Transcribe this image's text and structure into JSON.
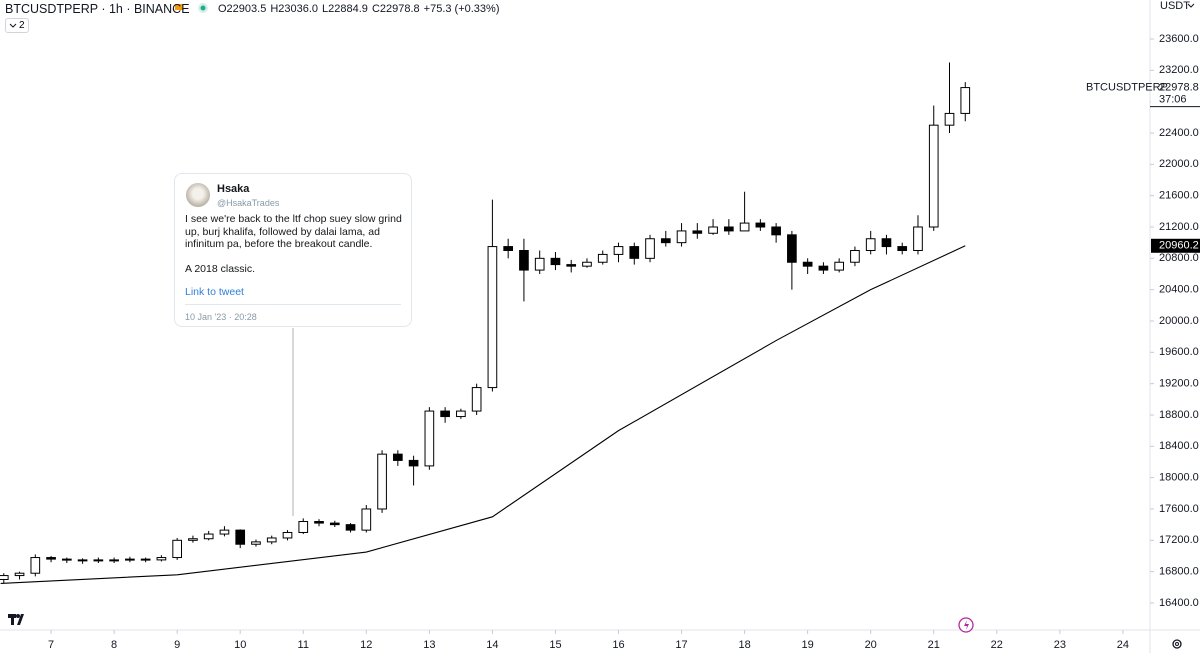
{
  "chart_data": {
    "type": "candlestick",
    "title": "BTCUSDTPERP · 1h · BINANCE",
    "ohlc": [
      "O22903.5",
      "H23036.0",
      "L22884.9",
      "C22978.8"
    ],
    "change": "+75.3 (+0.33%)",
    "indicators_count": 2,
    "currency": "USDT",
    "symbol_label": "BTCUSDTPERP",
    "last_price": 22978.8,
    "countdown": "37:06",
    "ma_last": 20960.2,
    "up_color": "#ffffff",
    "down_color": "#000000",
    "wick_color": "#000000",
    "x": [
      6.25,
      6.5,
      6.75,
      7,
      7.25,
      7.5,
      7.75,
      8,
      8.25,
      8.5,
      8.75,
      9,
      9.25,
      9.5,
      9.75,
      10,
      10.25,
      10.5,
      10.75,
      11,
      11.25,
      11.5,
      11.75,
      12,
      12.25,
      12.5,
      12.75,
      13,
      13.25,
      13.5,
      13.75,
      14,
      14.25,
      14.5,
      14.75,
      15,
      15.25,
      15.5,
      15.75,
      16,
      16.25,
      16.5,
      16.75,
      17,
      17.25,
      17.5,
      17.75,
      18,
      18.25,
      18.5,
      18.75,
      19,
      19.25,
      19.5,
      19.75,
      20,
      20.25,
      20.5,
      20.75,
      21,
      21.25,
      21.5
    ],
    "open": [
      16700,
      16750,
      16780,
      16980,
      16960,
      16950,
      16940,
      16950,
      16950,
      16960,
      16950,
      16980,
      17200,
      17220,
      17280,
      17330,
      17150,
      17180,
      17230,
      17300,
      17440,
      17420,
      17400,
      17330,
      17600,
      18300,
      18220,
      18150,
      18850,
      18780,
      18850,
      19150,
      20950,
      20900,
      20650,
      20800,
      20720,
      20700,
      20750,
      20850,
      20950,
      20800,
      21050,
      21000,
      21150,
      21120,
      21200,
      21150,
      21250,
      21200,
      21100,
      20750,
      20700,
      20650,
      20750,
      20900,
      21050,
      20950,
      20900,
      21200,
      22500,
      22650
    ],
    "high": [
      16780,
      16800,
      17020,
      17000,
      16980,
      16970,
      16980,
      16980,
      16990,
      16980,
      17010,
      17230,
      17260,
      17320,
      17380,
      17340,
      17210,
      17260,
      17330,
      17480,
      17470,
      17450,
      17420,
      17650,
      18350,
      18350,
      18280,
      18900,
      18900,
      18880,
      19200,
      21550,
      21050,
      21050,
      20900,
      20880,
      20780,
      20800,
      20900,
      21000,
      21000,
      21100,
      21150,
      21250,
      21250,
      21300,
      21300,
      21650,
      21300,
      21250,
      21150,
      20800,
      20750,
      20800,
      20950,
      21150,
      21100,
      21000,
      21350,
      22750,
      23300,
      23050
    ],
    "low": [
      16650,
      16700,
      16740,
      16920,
      16910,
      16900,
      16910,
      16910,
      16920,
      16920,
      16930,
      16950,
      17170,
      17200,
      17250,
      17100,
      17120,
      17150,
      17200,
      17280,
      17380,
      17370,
      17300,
      17300,
      17550,
      18150,
      17900,
      18100,
      18700,
      18750,
      18800,
      19100,
      20800,
      20250,
      20600,
      20650,
      20620,
      20680,
      20720,
      20750,
      20720,
      20750,
      20950,
      20950,
      21050,
      21100,
      21100,
      21150,
      21150,
      21000,
      20400,
      20600,
      20600,
      20620,
      20700,
      20850,
      20850,
      20850,
      20850,
      21150,
      22400,
      22550
    ],
    "close": [
      16750,
      16780,
      16980,
      16960,
      16950,
      16940,
      16950,
      16950,
      16960,
      16950,
      16980,
      17200,
      17220,
      17280,
      17330,
      17150,
      17180,
      17230,
      17300,
      17440,
      17420,
      17400,
      17330,
      17600,
      18300,
      18220,
      18150,
      18850,
      18780,
      18850,
      19150,
      20950,
      20900,
      20650,
      20800,
      20720,
      20700,
      20750,
      20850,
      20950,
      20800,
      21050,
      21000,
      21150,
      21120,
      21200,
      21150,
      21250,
      21200,
      21100,
      20750,
      20700,
      20650,
      20750,
      20900,
      21050,
      20950,
      20900,
      21200,
      22500,
      22650,
      22980
    ],
    "ma": {
      "color": "#000000",
      "x": [
        6.2,
        9,
        12,
        14,
        16,
        18.5,
        20,
        21.5
      ],
      "values": [
        16650,
        16760,
        17050,
        17500,
        18600,
        19750,
        20400,
        20960
      ]
    },
    "xlim": [
      6.19,
      24.43
    ],
    "ylim": [
      16055,
      24098
    ],
    "xticks": [
      7,
      8,
      9,
      10,
      11,
      12,
      13,
      14,
      15,
      16,
      17,
      18,
      19,
      20,
      21,
      22,
      23,
      24
    ],
    "yticks": [
      {
        "value": 16400,
        "label": "16400.0"
      },
      {
        "value": 16800,
        "label": "16800.0"
      },
      {
        "value": 17200,
        "label": "17200.0"
      },
      {
        "value": 17600,
        "label": "17600.0"
      },
      {
        "value": 18000,
        "label": "18000.0"
      },
      {
        "value": 18400,
        "label": "18400.0"
      },
      {
        "value": 18800,
        "label": "18800.0"
      },
      {
        "value": 19200,
        "label": "19200.0"
      },
      {
        "value": 19600,
        "label": "19600.0"
      },
      {
        "value": 20000,
        "label": "20000.0"
      },
      {
        "value": 20400,
        "label": "20400.0"
      },
      {
        "value": 20800,
        "label": "20800.0"
      },
      {
        "value": 21200,
        "label": "21200.0"
      },
      {
        "value": 21600,
        "label": "21600.0"
      },
      {
        "value": 22000,
        "label": "22000.0"
      },
      {
        "value": 22400,
        "label": "22400.0"
      },
      {
        "value": 22800,
        "label": "22800.0"
      },
      {
        "value": 23200,
        "label": "23200.0"
      },
      {
        "value": 23600,
        "label": "23600.0"
      }
    ]
  },
  "tweet": {
    "name": "Hsaka",
    "handle": "@HsakaTrades",
    "lines": [
      "I see we're back to the ltf chop suey slow grind",
      "up, burj khalifa, followed by dalai lama, ad",
      "infinitum pa, before the breakout candle."
    ],
    "closing": "A 2018 classic.",
    "link": "Link to tweet",
    "date": "10 Jan '23 · 20:28"
  }
}
